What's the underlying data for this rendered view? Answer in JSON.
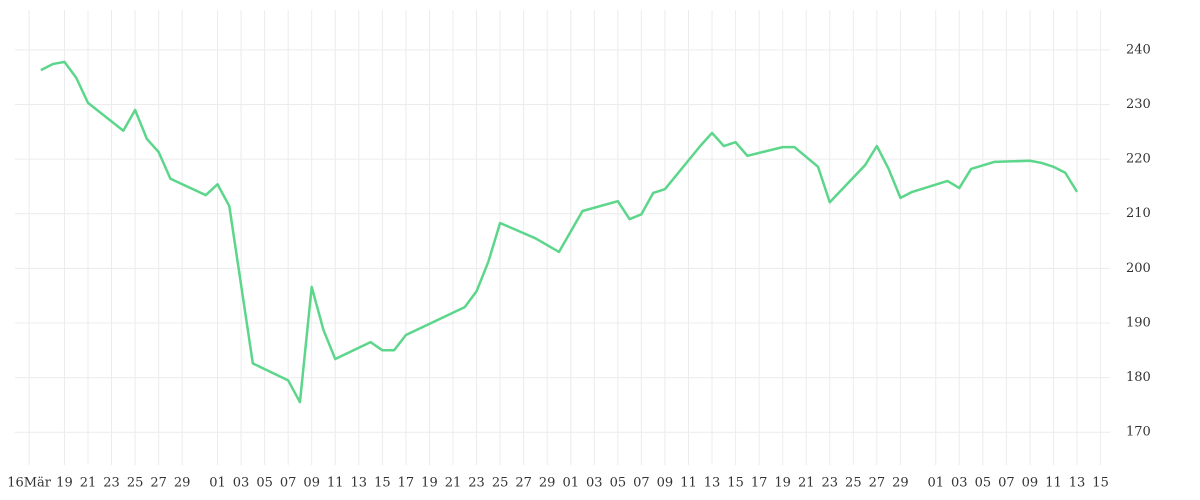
{
  "chart_data": {
    "type": "line",
    "xlim": [
      -1.2,
      91.8
    ],
    "ylim": [
      164,
      247.3
    ],
    "yticks": [
      170,
      180,
      190,
      200,
      210,
      220,
      230,
      240
    ],
    "xticks": [
      {
        "value": 0,
        "label": "16Mär"
      },
      {
        "value": 3,
        "label": "19"
      },
      {
        "value": 5,
        "label": "21"
      },
      {
        "value": 7,
        "label": "23"
      },
      {
        "value": 9,
        "label": "25"
      },
      {
        "value": 11,
        "label": "27"
      },
      {
        "value": 13,
        "label": "29"
      },
      {
        "value": 16,
        "label": "01"
      },
      {
        "value": 18,
        "label": "03"
      },
      {
        "value": 20,
        "label": "05"
      },
      {
        "value": 22,
        "label": "07"
      },
      {
        "value": 24,
        "label": "09"
      },
      {
        "value": 26,
        "label": "11"
      },
      {
        "value": 28,
        "label": "13"
      },
      {
        "value": 30,
        "label": "15"
      },
      {
        "value": 32,
        "label": "17"
      },
      {
        "value": 34,
        "label": "19"
      },
      {
        "value": 36,
        "label": "21"
      },
      {
        "value": 38,
        "label": "23"
      },
      {
        "value": 40,
        "label": "25"
      },
      {
        "value": 42,
        "label": "27"
      },
      {
        "value": 44,
        "label": "29"
      },
      {
        "value": 46,
        "label": "01"
      },
      {
        "value": 48,
        "label": "03"
      },
      {
        "value": 50,
        "label": "05"
      },
      {
        "value": 52,
        "label": "07"
      },
      {
        "value": 54,
        "label": "09"
      },
      {
        "value": 56,
        "label": "11"
      },
      {
        "value": 58,
        "label": "13"
      },
      {
        "value": 60,
        "label": "15"
      },
      {
        "value": 62,
        "label": "17"
      },
      {
        "value": 64,
        "label": "19"
      },
      {
        "value": 66,
        "label": "21"
      },
      {
        "value": 68,
        "label": "23"
      },
      {
        "value": 70,
        "label": "25"
      },
      {
        "value": 72,
        "label": "27"
      },
      {
        "value": 74,
        "label": "29"
      },
      {
        "value": 77,
        "label": "01"
      },
      {
        "value": 79,
        "label": "03"
      },
      {
        "value": 81,
        "label": "05"
      },
      {
        "value": 83,
        "label": "07"
      },
      {
        "value": 85,
        "label": "09"
      },
      {
        "value": 87,
        "label": "11"
      },
      {
        "value": 89,
        "label": "13"
      },
      {
        "value": 91,
        "label": "15"
      }
    ],
    "grid": true,
    "x": [
      1,
      2,
      3,
      4,
      5,
      8,
      9,
      10,
      11,
      12,
      15,
      16,
      17,
      19,
      22,
      23,
      24,
      25,
      26,
      29,
      30,
      31,
      32,
      37,
      38,
      39,
      40,
      43,
      45,
      47,
      50,
      51,
      52,
      53,
      54,
      57,
      58,
      59,
      60,
      61,
      64,
      65,
      66,
      67,
      68,
      71,
      72,
      73,
      74,
      75,
      78,
      79,
      80,
      82,
      85,
      86,
      87,
      88,
      89
    ],
    "series": [
      {
        "color": "#5cd68a",
        "values": [
          236.3,
          237.4,
          237.8,
          234.9,
          230.3,
          225.2,
          229.0,
          223.7,
          221.3,
          216.4,
          213.4,
          215.4,
          211.4,
          182.6,
          179.5,
          175.5,
          196.6,
          188.7,
          183.4,
          186.5,
          185.0,
          185.0,
          187.8,
          192.9,
          195.8,
          201.2,
          208.3,
          205.5,
          203.0,
          210.5,
          212.3,
          209.0,
          209.9,
          213.8,
          214.5,
          222.4,
          224.8,
          222.4,
          223.1,
          220.6,
          222.2,
          222.2,
          220.4,
          218.6,
          212.1,
          218.9,
          222.4,
          218.2,
          212.9,
          214.0,
          216.0,
          214.7,
          218.2,
          219.5,
          219.7,
          219.3,
          218.6,
          217.5,
          214.0
        ]
      }
    ]
  }
}
